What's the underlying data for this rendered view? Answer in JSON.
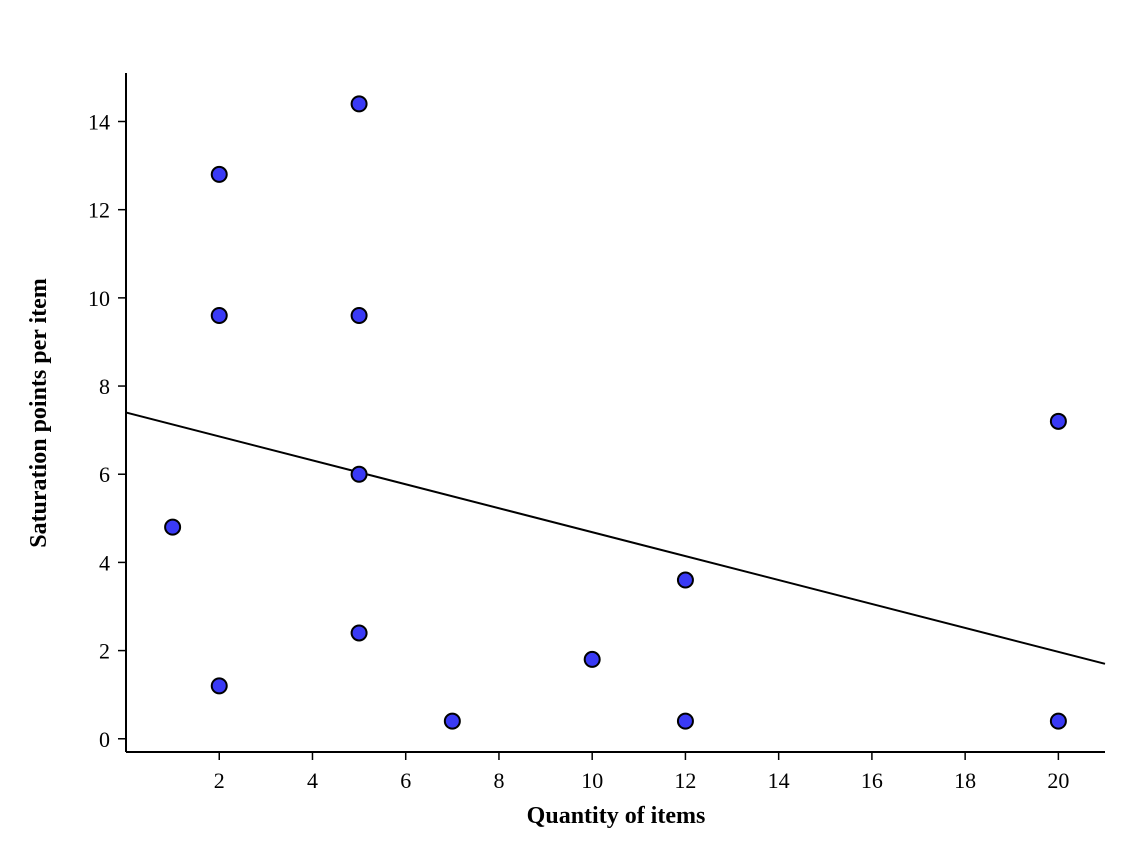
{
  "chart_data": {
    "type": "scatter",
    "title": "",
    "xlabel": "Quantity of items",
    "ylabel": "Saturation points per item",
    "xlim": [
      0,
      21
    ],
    "ylim": [
      -0.3,
      15.1
    ],
    "xticks": [
      2,
      4,
      6,
      8,
      10,
      12,
      14,
      16,
      18,
      20
    ],
    "yticks": [
      0,
      2,
      4,
      6,
      8,
      10,
      12,
      14
    ],
    "grid": false,
    "legend": "none",
    "colors": {
      "point_fill": "#3a3af5",
      "point_edge": "#000000",
      "trend_line": "#000000"
    },
    "points": [
      {
        "x": 1,
        "y": 4.8
      },
      {
        "x": 2,
        "y": 12.8
      },
      {
        "x": 2,
        "y": 9.6
      },
      {
        "x": 2,
        "y": 1.2
      },
      {
        "x": 5,
        "y": 14.4
      },
      {
        "x": 5,
        "y": 9.6
      },
      {
        "x": 5,
        "y": 6.0
      },
      {
        "x": 5,
        "y": 2.4
      },
      {
        "x": 7,
        "y": 0.4
      },
      {
        "x": 10,
        "y": 1.8
      },
      {
        "x": 12,
        "y": 3.6
      },
      {
        "x": 12,
        "y": 0.4
      },
      {
        "x": 20,
        "y": 7.2
      },
      {
        "x": 20,
        "y": 0.4
      }
    ],
    "trend_line": {
      "x": [
        0,
        21
      ],
      "y": [
        7.4,
        1.7
      ]
    }
  }
}
